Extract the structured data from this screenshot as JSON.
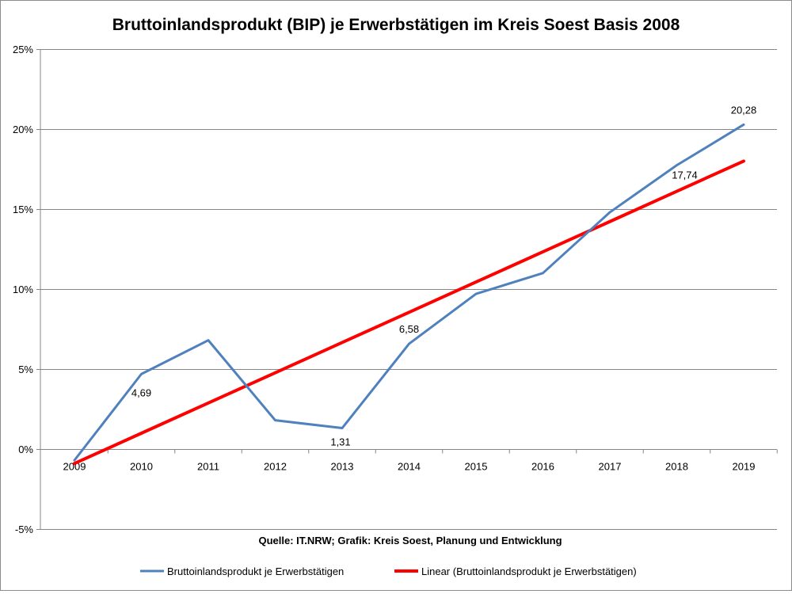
{
  "chart_data": {
    "type": "line",
    "title": "Bruttoinlandsprodukt (BIP) je Erwerbstätigen im Kreis Soest Basis 2008",
    "x": [
      "2009",
      "2010",
      "2011",
      "2012",
      "2013",
      "2014",
      "2015",
      "2016",
      "2017",
      "2018",
      "2019"
    ],
    "ylim": [
      -5,
      25
    ],
    "yticks": [
      "-5%",
      "0%",
      "5%",
      "10%",
      "15%",
      "20%",
      "25%"
    ],
    "yticks_values": [
      -5,
      0,
      5,
      10,
      15,
      20,
      25
    ],
    "grid": true,
    "series": [
      {
        "name": "Bruttoinlandsprodukt je Erwerbstätigen",
        "color": "#4f81bd",
        "values": [
          -0.7,
          4.69,
          6.8,
          1.8,
          1.31,
          6.58,
          9.7,
          11.0,
          14.8,
          17.74,
          20.28
        ]
      },
      {
        "name": "Linear (Bruttoinlandsprodukt je Erwerbstätigen)",
        "color": "#ff0000",
        "values": [
          -0.9,
          0.99,
          2.88,
          4.77,
          6.66,
          8.55,
          10.44,
          12.33,
          14.22,
          16.11,
          18.0
        ]
      }
    ],
    "data_labels": [
      {
        "index": 1,
        "text": "4,69"
      },
      {
        "index": 4,
        "text": "1,31"
      },
      {
        "index": 5,
        "text": "6,58"
      },
      {
        "index": 9,
        "text": "17,74"
      },
      {
        "index": 10,
        "text": "20,28"
      }
    ],
    "source": "Quelle: IT.NRW; Grafik: Kreis Soest, Planung und Entwicklung",
    "legend_position": "bottom"
  }
}
